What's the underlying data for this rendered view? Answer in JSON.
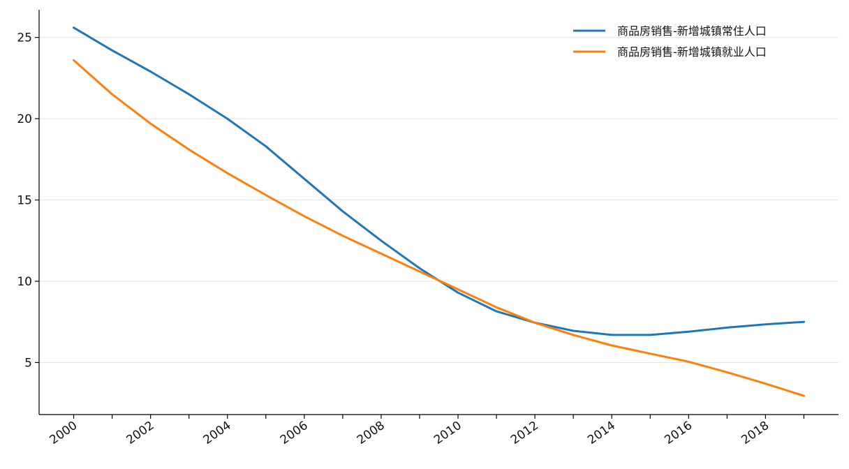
{
  "chart_data": {
    "type": "line",
    "title": "",
    "xlabel": "",
    "ylabel": "",
    "x": [
      2000,
      2001,
      2002,
      2003,
      2004,
      2005,
      2006,
      2007,
      2008,
      2009,
      2010,
      2011,
      2012,
      2013,
      2014,
      2015,
      2016,
      2017,
      2018,
      2019
    ],
    "xticks": [
      2000,
      2002,
      2004,
      2006,
      2008,
      2010,
      2012,
      2014,
      2016,
      2018
    ],
    "yticks": [
      5,
      10,
      15,
      20,
      25
    ],
    "xlim": [
      1999.1,
      2019.9
    ],
    "ylim": [
      1.8,
      26.7
    ],
    "grid": "horizontal",
    "legend_position": "top-right",
    "series": [
      {
        "name": "商品房销售-新增城镇常住人口",
        "color": "#1f77b4",
        "values": [
          25.6,
          24.2,
          22.9,
          21.5,
          20.0,
          18.3,
          16.3,
          14.3,
          12.5,
          10.8,
          9.3,
          8.15,
          7.45,
          6.95,
          6.7,
          6.7,
          6.9,
          7.15,
          7.35,
          7.5
        ]
      },
      {
        "name": "商品房销售-新增城镇就业人口",
        "color": "#ff7f0e",
        "values": [
          23.6,
          21.5,
          19.7,
          18.1,
          16.65,
          15.3,
          14.0,
          12.8,
          11.7,
          10.6,
          9.5,
          8.4,
          7.45,
          6.7,
          6.05,
          5.55,
          5.05,
          4.4,
          3.7,
          2.95
        ]
      }
    ]
  }
}
